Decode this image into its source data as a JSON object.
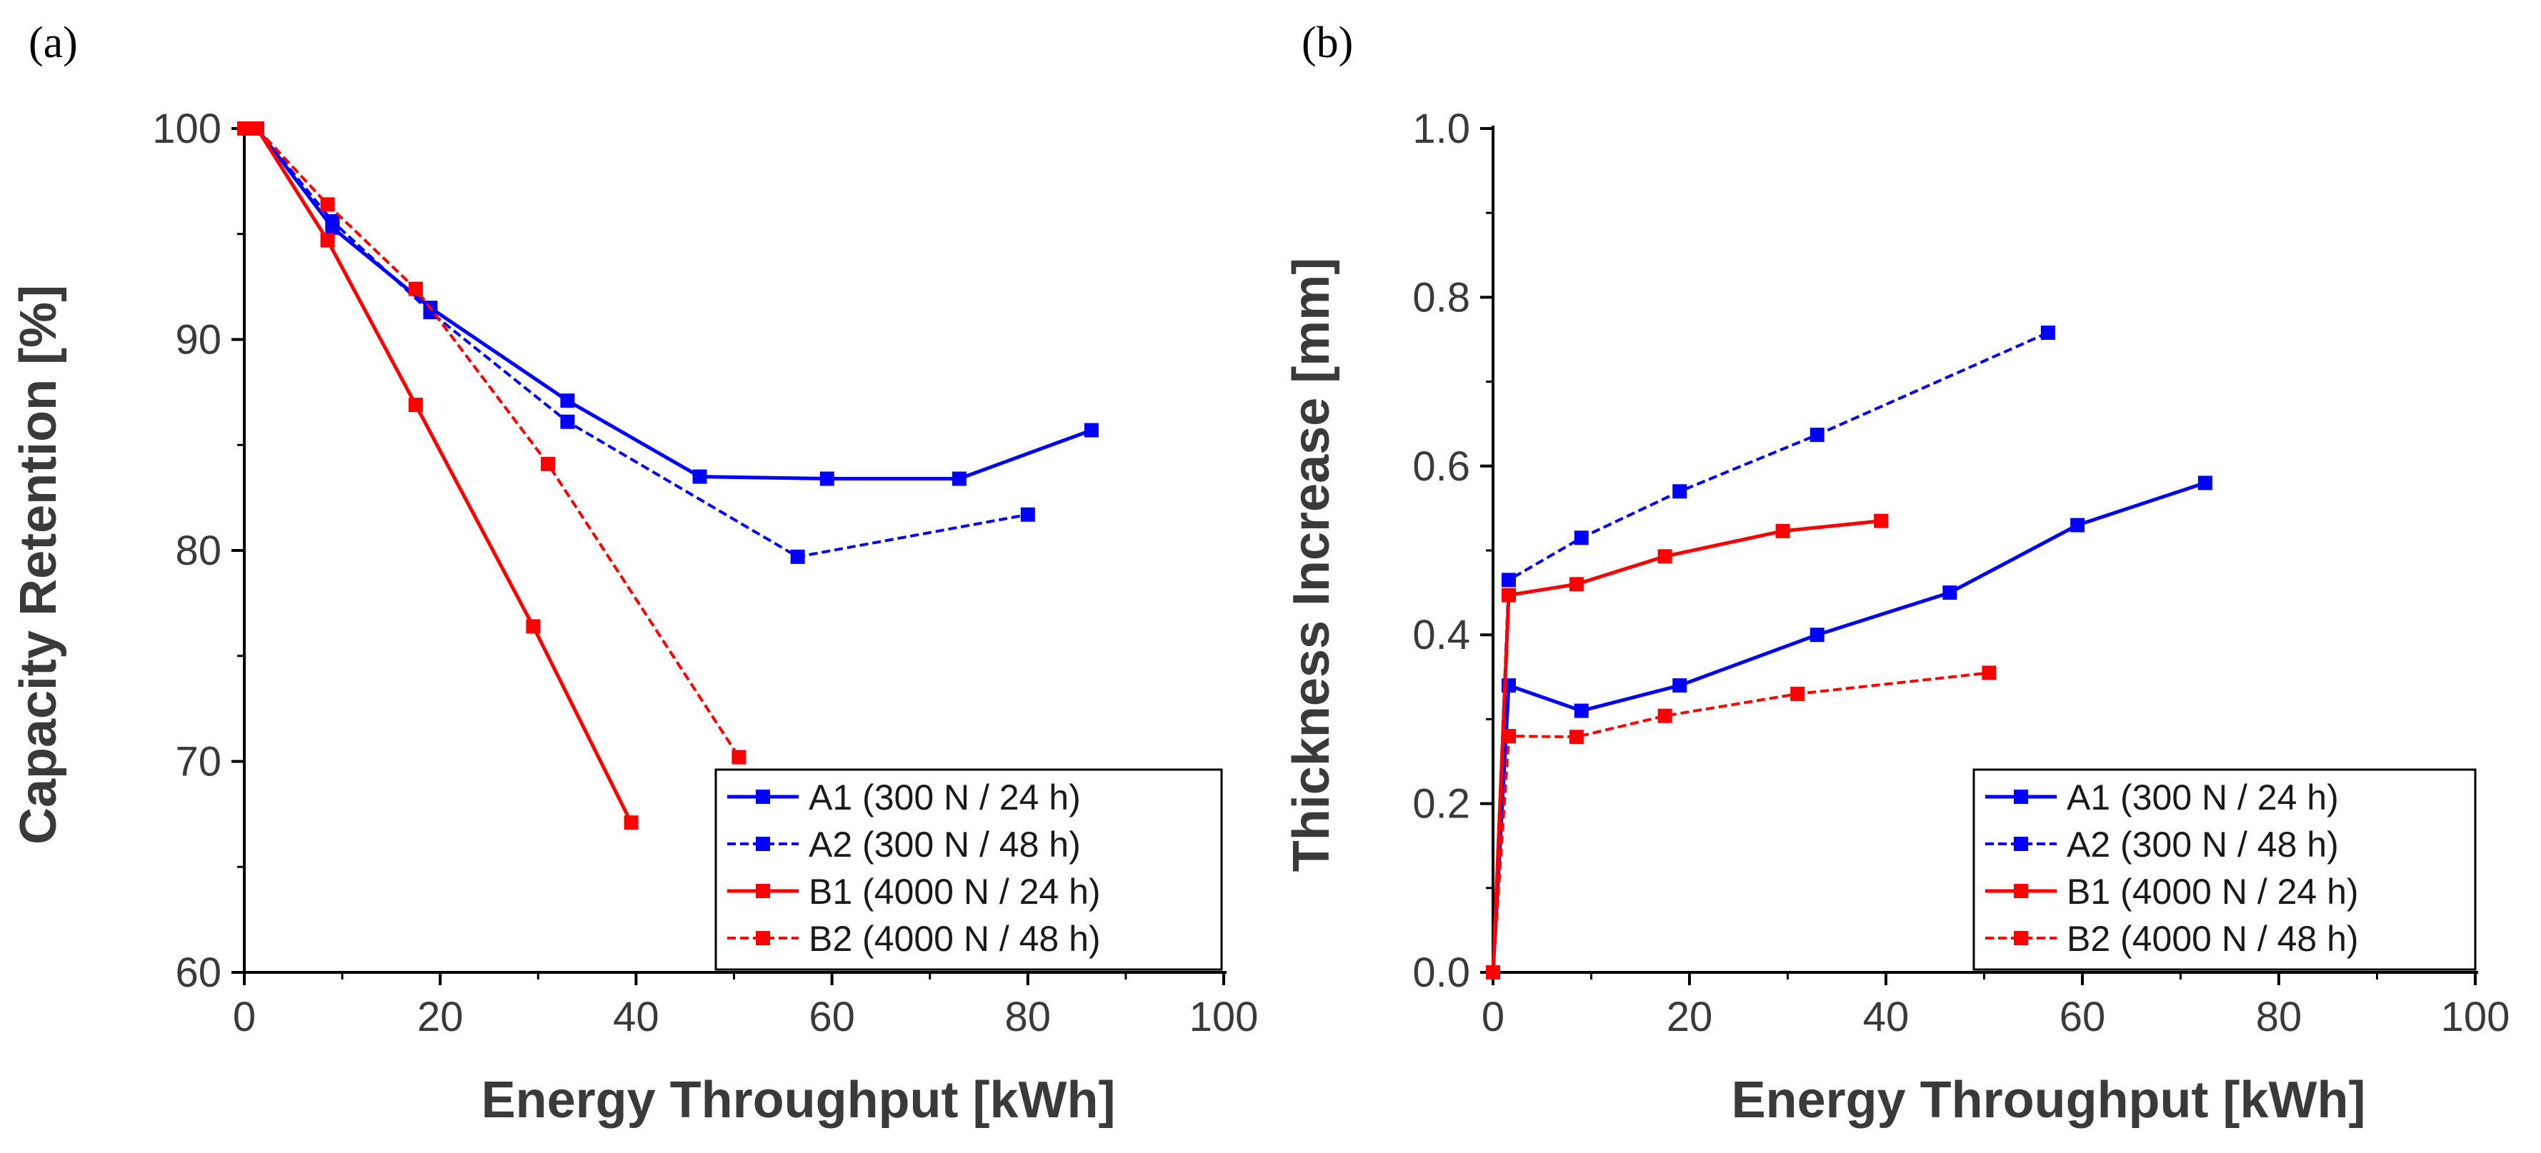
{
  "chart_data": [
    {
      "type": "line",
      "panel_label": "(a)",
      "xlabel": "Energy Throughput [kWh]",
      "ylabel": "Capacity Retention [%]",
      "xlim": [
        0,
        100
      ],
      "ylim": [
        60,
        100
      ],
      "xticks": [
        0,
        20,
        40,
        60,
        80,
        100
      ],
      "yticks": [
        60,
        70,
        80,
        90,
        100
      ],
      "x_tick_labels": [
        "0",
        "20",
        "40",
        "60",
        "80",
        "100"
      ],
      "y_tick_labels": [
        "60",
        "70",
        "80",
        "90",
        "100"
      ],
      "legend_position": "bottom-right",
      "series": [
        {
          "name": "A1 (300 N / 24 h)",
          "color": "#0000ff",
          "style": "solid",
          "x": [
            0,
            1.3,
            9.0,
            19.0,
            33.0,
            46.5,
            59.5,
            73.0,
            86.5
          ],
          "y": [
            100,
            100,
            95.3,
            91.5,
            87.1,
            83.5,
            83.4,
            83.4,
            85.7
          ]
        },
        {
          "name": "A2 (300 N / 48 h)",
          "color": "#0000ff",
          "style": "dashed",
          "x": [
            0,
            1.3,
            9.0,
            19.0,
            33.0,
            56.5,
            80.0
          ],
          "y": [
            100,
            100,
            95.6,
            91.3,
            86.1,
            79.7,
            81.7
          ]
        },
        {
          "name": "B1 (4000 N / 24 h)",
          "color": "#ff0000",
          "style": "solid",
          "x": [
            0,
            1.3,
            8.5,
            17.5,
            29.5,
            39.5
          ],
          "y": [
            100,
            100,
            94.7,
            86.9,
            76.4,
            67.1
          ]
        },
        {
          "name": "B2 (4000 N / 48 h)",
          "color": "#ff0000",
          "style": "dashed",
          "x": [
            0,
            1.3,
            8.5,
            17.5,
            31.0,
            50.5
          ],
          "y": [
            100,
            100,
            96.4,
            92.4,
            84.1,
            70.2
          ]
        }
      ]
    },
    {
      "type": "line",
      "panel_label": "(b)",
      "xlabel": "Energy Throughput [kWh]",
      "ylabel": "Thickness Increase [mm]",
      "xlim": [
        0,
        100
      ],
      "ylim": [
        0,
        1.0
      ],
      "xticks": [
        0,
        20,
        40,
        60,
        80,
        100
      ],
      "yticks": [
        0,
        0.2,
        0.4,
        0.6,
        0.8,
        1.0
      ],
      "x_tick_labels": [
        "0",
        "20",
        "40",
        "60",
        "80",
        "100"
      ],
      "y_tick_labels": [
        "0.0",
        "0.2",
        "0.4",
        "0.6",
        "0.8",
        "1.0"
      ],
      "legend_position": "bottom-right",
      "series": [
        {
          "name": "A1 (300 N / 24 h)",
          "color": "#0000ff",
          "style": "solid",
          "x": [
            0,
            1.6,
            9.0,
            19.0,
            33.0,
            46.5,
            59.5,
            72.5
          ],
          "y": [
            0,
            0.34,
            0.31,
            0.34,
            0.4,
            0.45,
            0.53,
            0.58
          ]
        },
        {
          "name": "A2 (300 N / 48 h)",
          "color": "#0000ff",
          "style": "dashed",
          "x": [
            0,
            1.6,
            9.0,
            19.0,
            33.0,
            56.5
          ],
          "y": [
            0,
            0.465,
            0.515,
            0.57,
            0.637,
            0.758
          ]
        },
        {
          "name": "B1 (4000 N / 24 h)",
          "color": "#ff0000",
          "style": "solid",
          "x": [
            0,
            1.6,
            8.5,
            17.5,
            29.5,
            39.5
          ],
          "y": [
            0,
            0.447,
            0.46,
            0.493,
            0.523,
            0.535
          ]
        },
        {
          "name": "B2 (4000 N / 48 h)",
          "color": "#ff0000",
          "style": "dashed",
          "x": [
            0,
            1.6,
            8.5,
            17.5,
            31.0,
            50.5
          ],
          "y": [
            0,
            0.28,
            0.279,
            0.304,
            0.33,
            0.355
          ]
        }
      ]
    }
  ]
}
